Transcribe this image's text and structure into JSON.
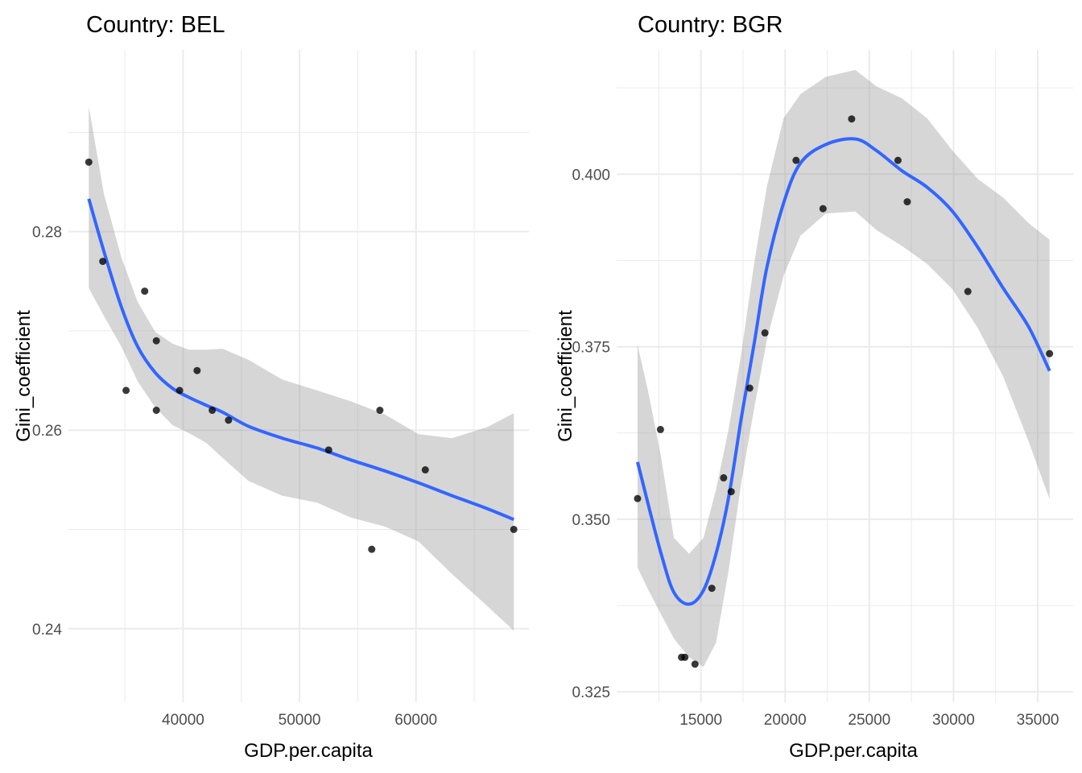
{
  "chart_data": [
    {
      "type": "scatter",
      "title": "Country: BEL",
      "xlabel": "GDP.per.capita",
      "ylabel": "Gini_coefficient",
      "xlim": [
        30150,
        69700
      ],
      "ylim": [
        0.2326,
        0.2983
      ],
      "x_ticks": [
        40000,
        50000,
        60000
      ],
      "x_tick_labels": [
        "40000",
        "50000",
        "60000"
      ],
      "x_minor": [
        35000,
        45000,
        55000,
        65000
      ],
      "y_ticks": [
        0.24,
        0.26,
        0.28
      ],
      "y_tick_labels": [
        "0.24",
        "0.26",
        "0.28"
      ],
      "y_minor": [
        0.25,
        0.27,
        0.29
      ],
      "grid": true,
      "points": [
        {
          "x": 31900,
          "y": 0.287
        },
        {
          "x": 33100,
          "y": 0.277
        },
        {
          "x": 35100,
          "y": 0.264
        },
        {
          "x": 36700,
          "y": 0.274
        },
        {
          "x": 37700,
          "y": 0.269
        },
        {
          "x": 37700,
          "y": 0.262
        },
        {
          "x": 39700,
          "y": 0.264
        },
        {
          "x": 41200,
          "y": 0.266
        },
        {
          "x": 42500,
          "y": 0.262
        },
        {
          "x": 43900,
          "y": 0.261
        },
        {
          "x": 52500,
          "y": 0.258
        },
        {
          "x": 56200,
          "y": 0.248
        },
        {
          "x": 56900,
          "y": 0.262
        },
        {
          "x": 60800,
          "y": 0.256
        },
        {
          "x": 68400,
          "y": 0.25
        }
      ],
      "smooth": {
        "method": "loess",
        "color": "#3366ff",
        "ribbon_color": "#999999",
        "x": [
          31900,
          33200,
          34700,
          36100,
          37600,
          39100,
          40500,
          42000,
          43400,
          45600,
          48500,
          51500,
          54400,
          57300,
          60200,
          63100,
          66100,
          68400
        ],
        "y": [
          0.2833,
          0.278,
          0.2724,
          0.2684,
          0.2658,
          0.2642,
          0.2633,
          0.2625,
          0.2618,
          0.2604,
          0.2592,
          0.2582,
          0.257,
          0.2559,
          0.2547,
          0.2534,
          0.2521,
          0.251
        ],
        "upper": [
          0.2926,
          0.2838,
          0.2774,
          0.2729,
          0.2699,
          0.2687,
          0.2681,
          0.2681,
          0.2682,
          0.2671,
          0.2651,
          0.264,
          0.2629,
          0.2616,
          0.2596,
          0.2592,
          0.2603,
          0.2617
        ],
        "lower": [
          0.2743,
          0.2715,
          0.2684,
          0.2649,
          0.2623,
          0.2605,
          0.2597,
          0.2587,
          0.2572,
          0.2549,
          0.2534,
          0.2527,
          0.2512,
          0.2503,
          0.2488,
          0.2455,
          0.2423,
          0.2398
        ]
      }
    },
    {
      "type": "scatter",
      "title": "Country: BGR",
      "xlabel": "GDP.per.capita",
      "ylabel": "Gini_coefficient",
      "xlim": [
        10000,
        37100
      ],
      "ylim": [
        0.3235,
        0.418
      ],
      "x_ticks": [
        15000,
        20000,
        25000,
        30000,
        35000
      ],
      "x_tick_labels": [
        "15000",
        "20000",
        "25000",
        "30000",
        "35000"
      ],
      "x_minor": [
        12500,
        17500,
        22500,
        27500,
        32500
      ],
      "y_ticks": [
        0.325,
        0.35,
        0.375,
        0.4
      ],
      "y_tick_labels": [
        "0.325",
        "0.350",
        "0.375",
        "0.400"
      ],
      "y_minor": [
        0.3375,
        0.3625,
        0.3875,
        0.4125
      ],
      "grid": true,
      "points": [
        {
          "x": 11240,
          "y": 0.353
        },
        {
          "x": 12600,
          "y": 0.363
        },
        {
          "x": 13850,
          "y": 0.33
        },
        {
          "x": 14050,
          "y": 0.33
        },
        {
          "x": 14650,
          "y": 0.329
        },
        {
          "x": 15650,
          "y": 0.34
        },
        {
          "x": 16350,
          "y": 0.356
        },
        {
          "x": 16800,
          "y": 0.354
        },
        {
          "x": 17900,
          "y": 0.369
        },
        {
          "x": 18800,
          "y": 0.377
        },
        {
          "x": 20650,
          "y": 0.402
        },
        {
          "x": 22250,
          "y": 0.395
        },
        {
          "x": 23950,
          "y": 0.408
        },
        {
          "x": 26700,
          "y": 0.402
        },
        {
          "x": 27250,
          "y": 0.396
        },
        {
          "x": 30850,
          "y": 0.383
        },
        {
          "x": 35700,
          "y": 0.374
        }
      ],
      "smooth": {
        "method": "loess",
        "color": "#3366ff",
        "ribbon_color": "#999999",
        "x": [
          11240,
          11890,
          12640,
          13400,
          14300,
          15150,
          15900,
          16650,
          17410,
          18160,
          18910,
          19910,
          20910,
          22420,
          24170,
          25430,
          26930,
          28430,
          29940,
          31440,
          32940,
          34450,
          35700
        ],
        "y": [
          0.3583,
          0.352,
          0.345,
          0.3394,
          0.3377,
          0.3397,
          0.345,
          0.3532,
          0.3648,
          0.3754,
          0.3864,
          0.3958,
          0.4016,
          0.4043,
          0.4051,
          0.4034,
          0.4005,
          0.3981,
          0.3946,
          0.3894,
          0.3835,
          0.3779,
          0.3715
        ],
        "upper": [
          0.3753,
          0.3683,
          0.359,
          0.3473,
          0.345,
          0.3473,
          0.3543,
          0.3631,
          0.3742,
          0.387,
          0.3981,
          0.4081,
          0.4116,
          0.4141,
          0.4151,
          0.4127,
          0.411,
          0.4081,
          0.4034,
          0.3993,
          0.3966,
          0.3929,
          0.3905
        ],
        "lower": [
          0.343,
          0.3397,
          0.3362,
          0.3327,
          0.33,
          0.3286,
          0.3321,
          0.3426,
          0.3555,
          0.366,
          0.3759,
          0.3853,
          0.3911,
          0.3943,
          0.3946,
          0.3919,
          0.3896,
          0.387,
          0.3833,
          0.3777,
          0.3707,
          0.3613,
          0.3529
        ]
      }
    }
  ]
}
